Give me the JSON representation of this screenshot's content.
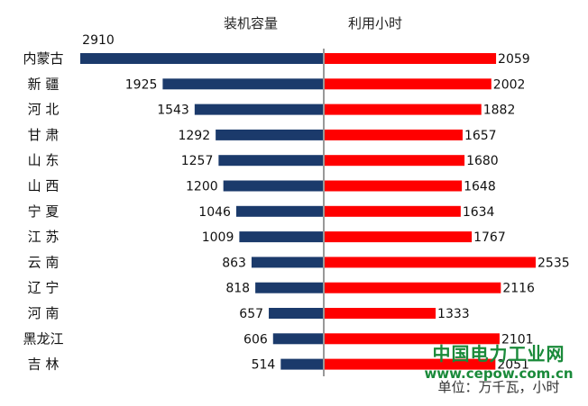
{
  "headers": {
    "left": "装机容量",
    "right": "利用小时"
  },
  "watermark": {
    "title": "中国电力工业网",
    "url": "www.cepow.com.cn",
    "unit_note": "单位：万千瓦，小时"
  },
  "colors": {
    "capacity": "#1b3a6b",
    "hours": "#ff0000",
    "divider": "#999999"
  },
  "chart_data": {
    "type": "bar",
    "orientation": "horizontal-back-to-back",
    "categories": [
      "内蒙古",
      "新 疆",
      "河 北",
      "甘 肃",
      "山 东",
      "山 西",
      "宁 夏",
      "江 苏",
      "云 南",
      "辽 宁",
      "河 南",
      "黑龙江",
      "吉 林"
    ],
    "series": [
      {
        "name": "装机容量",
        "values": [
          2910,
          1925,
          1543,
          1292,
          1257,
          1200,
          1046,
          1009,
          863,
          818,
          657,
          606,
          514
        ]
      },
      {
        "name": "利用小时",
        "values": [
          2059,
          2002,
          1882,
          1657,
          1680,
          1648,
          1634,
          1767,
          2535,
          2116,
          1333,
          2101,
          2051
        ]
      }
    ],
    "xlim_capacity": [
      0,
      2910
    ],
    "xlim_hours": [
      0,
      2535
    ],
    "legend": "none",
    "grid": false
  }
}
